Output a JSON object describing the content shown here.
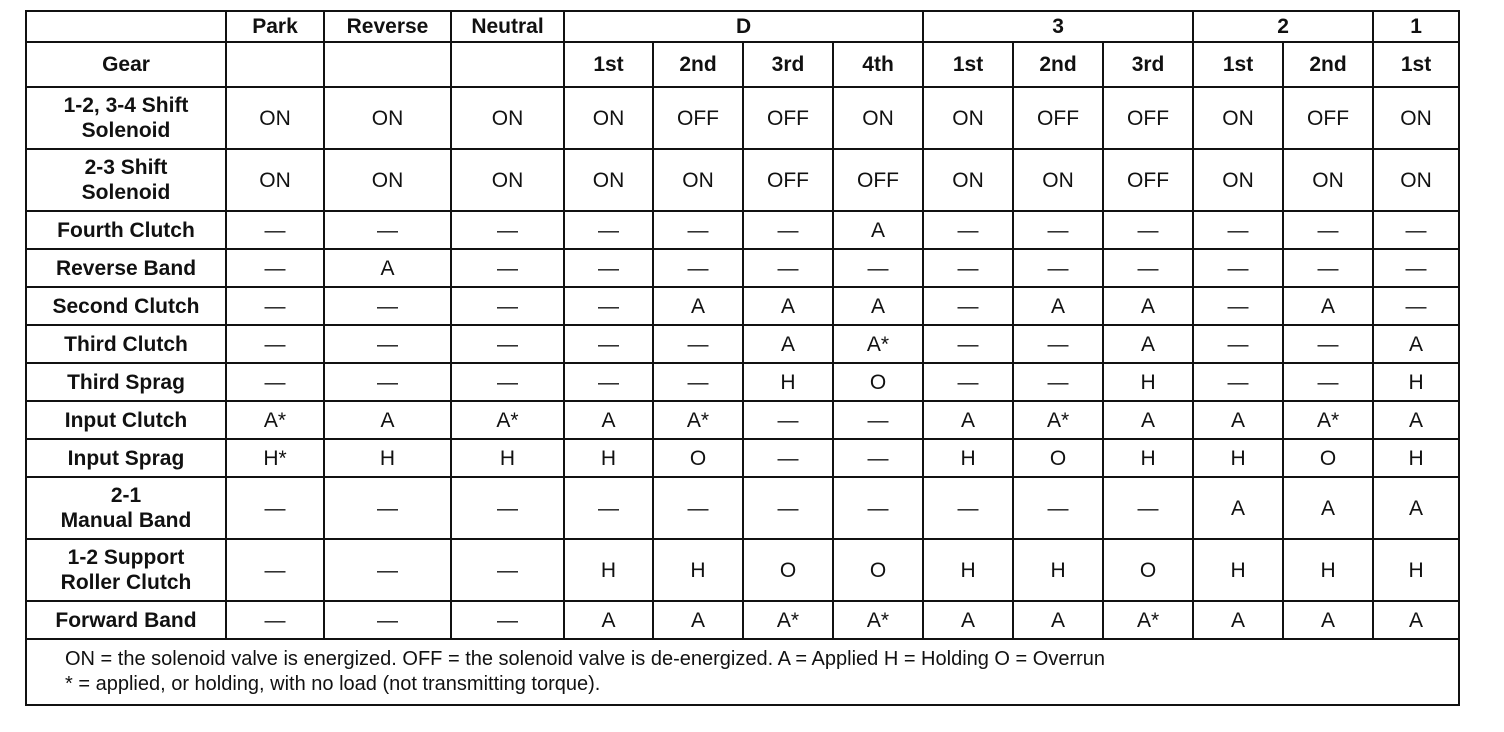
{
  "table": {
    "corner": "Gear",
    "top": [
      "Park",
      "Reverse",
      "Neutral"
    ],
    "groups": [
      {
        "label": "D",
        "gears": [
          "1st",
          "2nd",
          "3rd",
          "4th"
        ]
      },
      {
        "label": "3",
        "gears": [
          "1st",
          "2nd",
          "3rd"
        ]
      },
      {
        "label": "2",
        "gears": [
          "1st",
          "2nd"
        ]
      },
      {
        "label": "1",
        "gears": [
          "1st"
        ]
      }
    ],
    "rows": [
      {
        "label": [
          "1-2, 3-4 Shift",
          "Solenoid"
        ],
        "cells": [
          "ON",
          "ON",
          "ON",
          "ON",
          "OFF",
          "OFF",
          "ON",
          "ON",
          "OFF",
          "OFF",
          "ON",
          "OFF",
          "ON"
        ]
      },
      {
        "label": [
          "2-3 Shift",
          "Solenoid"
        ],
        "cells": [
          "ON",
          "ON",
          "ON",
          "ON",
          "ON",
          "OFF",
          "OFF",
          "ON",
          "ON",
          "OFF",
          "ON",
          "ON",
          "ON"
        ]
      },
      {
        "label": [
          "Fourth Clutch"
        ],
        "cells": [
          "—",
          "—",
          "—",
          "—",
          "—",
          "—",
          "A",
          "—",
          "—",
          "—",
          "—",
          "—",
          "—"
        ]
      },
      {
        "label": [
          "Reverse Band"
        ],
        "cells": [
          "—",
          "A",
          "—",
          "—",
          "—",
          "—",
          "—",
          "—",
          "—",
          "—",
          "—",
          "—",
          "—"
        ]
      },
      {
        "label": [
          "Second Clutch"
        ],
        "cells": [
          "—",
          "—",
          "—",
          "—",
          "A",
          "A",
          "A",
          "—",
          "A",
          "A",
          "—",
          "A",
          "—"
        ]
      },
      {
        "label": [
          "Third Clutch"
        ],
        "cells": [
          "—",
          "—",
          "—",
          "—",
          "—",
          "A",
          "A*",
          "—",
          "—",
          "A",
          "—",
          "—",
          "A"
        ]
      },
      {
        "label": [
          "Third Sprag"
        ],
        "cells": [
          "—",
          "—",
          "—",
          "—",
          "—",
          "H",
          "O",
          "—",
          "—",
          "H",
          "—",
          "—",
          "H"
        ]
      },
      {
        "label": [
          "Input Clutch"
        ],
        "cells": [
          "A*",
          "A",
          "A*",
          "A",
          "A*",
          "—",
          "—",
          "A",
          "A*",
          "A",
          "A",
          "A*",
          "A"
        ]
      },
      {
        "label": [
          "Input Sprag"
        ],
        "cells": [
          "H*",
          "H",
          "H",
          "H",
          "O",
          "—",
          "—",
          "H",
          "O",
          "H",
          "H",
          "O",
          "H"
        ]
      },
      {
        "label": [
          "2-1",
          "Manual Band"
        ],
        "cells": [
          "—",
          "—",
          "—",
          "—",
          "—",
          "—",
          "—",
          "—",
          "—",
          "—",
          "A",
          "A",
          "A"
        ]
      },
      {
        "label": [
          "1-2 Support",
          "Roller Clutch"
        ],
        "cells": [
          "—",
          "—",
          "—",
          "H",
          "H",
          "O",
          "O",
          "H",
          "H",
          "O",
          "H",
          "H",
          "H"
        ]
      },
      {
        "label": [
          "Forward Band"
        ],
        "cells": [
          "—",
          "—",
          "—",
          "A",
          "A",
          "A*",
          "A*",
          "A",
          "A",
          "A*",
          "A",
          "A",
          "A"
        ]
      }
    ],
    "note": [
      "ON = the solenoid valve is energized. OFF = the solenoid valve is de-energized. A = Applied H = Holding O = Overrun",
      "* = applied, or holding, with no load (not transmitting torque)."
    ]
  }
}
